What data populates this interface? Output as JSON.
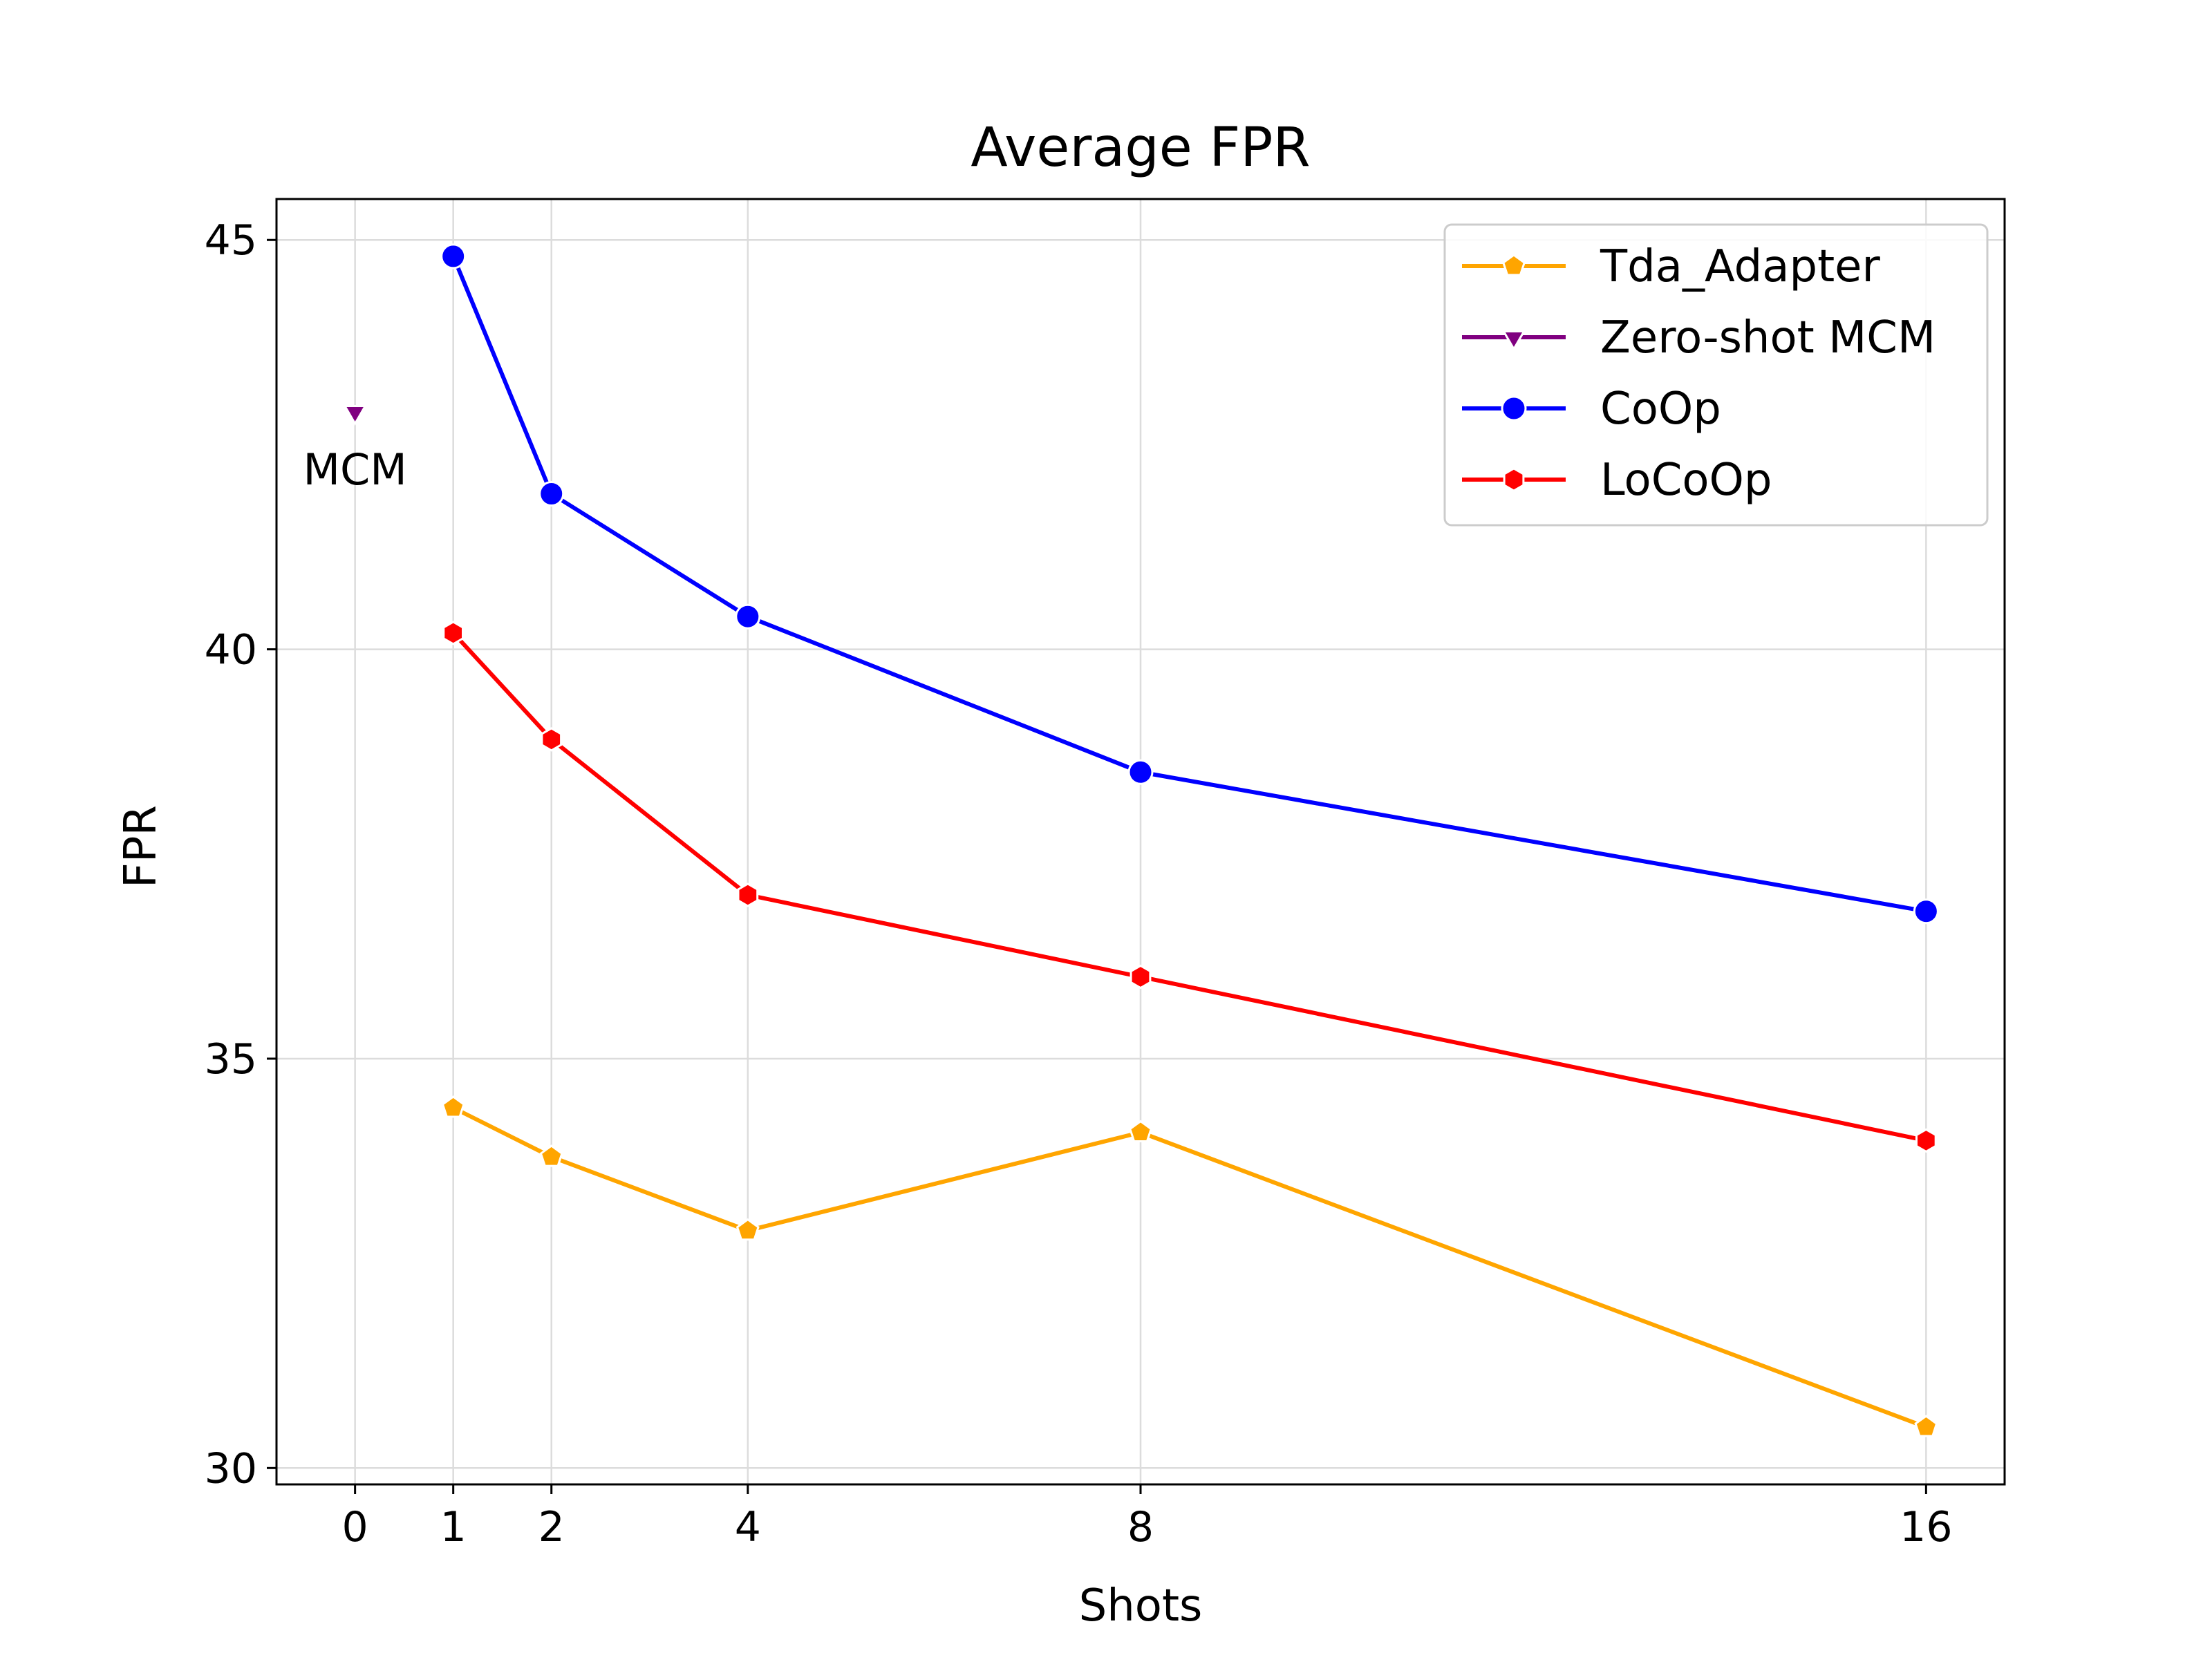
{
  "chart_data": {
    "type": "line",
    "title": "Average FPR",
    "xlabel": "Shots",
    "ylabel": "FPR",
    "x_ticks": [
      0,
      1,
      2,
      4,
      8,
      16
    ],
    "x_tick_labels": [
      "0",
      "1",
      "2",
      "4",
      "8",
      "16"
    ],
    "xlim": [
      -0.8,
      16.8
    ],
    "y_ticks": [
      30,
      35,
      40,
      45
    ],
    "y_tick_labels": [
      "30",
      "35",
      "40",
      "45"
    ],
    "ylim": [
      29.8,
      45.5
    ],
    "grid": true,
    "legend_position": "top-right",
    "series": [
      {
        "name": "Tda_Adapter",
        "color": "#FFA500",
        "marker": "pentagon",
        "x": [
          1,
          2,
          4,
          8,
          16
        ],
        "y": [
          34.4,
          33.8,
          32.9,
          34.1,
          30.5
        ]
      },
      {
        "name": "Zero-shot MCM",
        "color": "#800080",
        "marker": "triangle-down",
        "x": [
          0
        ],
        "y": [
          42.9
        ]
      },
      {
        "name": "CoOp",
        "color": "#0000FF",
        "marker": "circle",
        "x": [
          1,
          2,
          4,
          8,
          16
        ],
        "y": [
          44.8,
          41.9,
          40.4,
          38.5,
          36.8
        ]
      },
      {
        "name": "LoCoOp",
        "color": "#FF0000",
        "marker": "hexagon",
        "x": [
          1,
          2,
          4,
          8,
          16
        ],
        "y": [
          40.2,
          38.9,
          37.0,
          36.0,
          34.0
        ]
      }
    ],
    "annotations": [
      {
        "text": "MCM",
        "x": 0,
        "y": 42.2
      }
    ]
  }
}
